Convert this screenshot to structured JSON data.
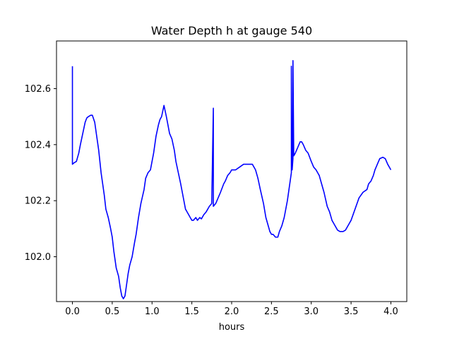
{
  "chart_data": {
    "type": "line",
    "title": "Water Depth h at gauge 540",
    "xlabel": "hours",
    "ylabel": "",
    "xlim": [
      -0.2,
      4.2
    ],
    "ylim": [
      101.84,
      102.77
    ],
    "x_ticks": [
      {
        "value": 0.0,
        "label": "0.0"
      },
      {
        "value": 0.5,
        "label": "0.5"
      },
      {
        "value": 1.0,
        "label": "1.0"
      },
      {
        "value": 1.5,
        "label": "1.5"
      },
      {
        "value": 2.0,
        "label": "2.0"
      },
      {
        "value": 2.5,
        "label": "2.5"
      },
      {
        "value": 3.0,
        "label": "3.0"
      },
      {
        "value": 3.5,
        "label": "3.5"
      },
      {
        "value": 4.0,
        "label": "4.0"
      }
    ],
    "y_ticks": [
      {
        "value": 102.0,
        "label": "102.0"
      },
      {
        "value": 102.2,
        "label": "102.2"
      },
      {
        "value": 102.4,
        "label": "102.4"
      },
      {
        "value": 102.6,
        "label": "102.6"
      }
    ],
    "grid": false,
    "series": [
      {
        "name": "",
        "color": "#0000ff",
        "x": [
          0.0,
          0.0,
          0.0,
          0.02,
          0.05,
          0.08,
          0.1,
          0.13,
          0.16,
          0.18,
          0.2,
          0.23,
          0.25,
          0.28,
          0.3,
          0.33,
          0.36,
          0.4,
          0.42,
          0.45,
          0.48,
          0.5,
          0.52,
          0.55,
          0.58,
          0.6,
          0.62,
          0.64,
          0.66,
          0.68,
          0.7,
          0.72,
          0.75,
          0.78,
          0.8,
          0.83,
          0.86,
          0.9,
          0.92,
          0.95,
          0.98,
          1.02,
          1.05,
          1.08,
          1.1,
          1.12,
          1.15,
          1.18,
          1.2,
          1.22,
          1.25,
          1.28,
          1.3,
          1.33,
          1.36,
          1.4,
          1.42,
          1.45,
          1.48,
          1.5,
          1.52,
          1.55,
          1.57,
          1.6,
          1.62,
          1.65,
          1.68,
          1.7,
          1.72,
          1.75,
          1.77,
          1.77,
          1.77,
          1.8,
          1.83,
          1.86,
          1.9,
          1.92,
          1.95,
          1.98,
          2.0,
          2.05,
          2.1,
          2.15,
          2.2,
          2.23,
          2.26,
          2.3,
          2.33,
          2.36,
          2.4,
          2.43,
          2.46,
          2.48,
          2.5,
          2.52,
          2.55,
          2.58,
          2.6,
          2.63,
          2.66,
          2.7,
          2.73,
          2.75,
          2.75,
          2.76,
          2.77,
          2.77,
          2.78,
          2.8,
          2.83,
          2.86,
          2.88,
          2.9,
          2.93,
          2.96,
          3.0,
          3.03,
          3.06,
          3.1,
          3.13,
          3.16,
          3.2,
          3.23,
          3.26,
          3.3,
          3.33,
          3.36,
          3.4,
          3.43,
          3.46,
          3.5,
          3.55,
          3.6,
          3.65,
          3.7,
          3.72,
          3.75,
          3.78,
          3.8,
          3.83,
          3.86,
          3.9,
          3.93,
          3.96,
          4.0
        ],
        "y": [
          102.68,
          102.33,
          102.33,
          102.335,
          102.34,
          102.37,
          102.4,
          102.44,
          102.48,
          102.495,
          102.5,
          102.505,
          102.505,
          102.48,
          102.44,
          102.38,
          102.3,
          102.22,
          102.17,
          102.14,
          102.1,
          102.07,
          102.02,
          101.96,
          101.93,
          101.89,
          101.86,
          101.85,
          101.86,
          101.9,
          101.94,
          101.97,
          102.0,
          102.05,
          102.08,
          102.14,
          102.19,
          102.24,
          102.28,
          102.3,
          102.31,
          102.37,
          102.43,
          102.47,
          102.49,
          102.5,
          102.54,
          102.5,
          102.47,
          102.44,
          102.42,
          102.38,
          102.34,
          102.3,
          102.26,
          102.2,
          102.17,
          102.155,
          102.14,
          102.13,
          102.13,
          102.14,
          102.13,
          102.14,
          102.135,
          102.15,
          102.16,
          102.17,
          102.18,
          102.19,
          102.53,
          102.19,
          102.18,
          102.19,
          102.21,
          102.23,
          102.26,
          102.27,
          102.29,
          102.3,
          102.31,
          102.31,
          102.32,
          102.33,
          102.33,
          102.33,
          102.33,
          102.31,
          102.28,
          102.24,
          102.19,
          102.14,
          102.11,
          102.09,
          102.08,
          102.08,
          102.07,
          102.07,
          102.09,
          102.11,
          102.14,
          102.2,
          102.26,
          102.3,
          102.68,
          102.31,
          102.35,
          102.7,
          102.36,
          102.37,
          102.39,
          102.41,
          102.41,
          102.4,
          102.38,
          102.37,
          102.34,
          102.32,
          102.31,
          102.29,
          102.26,
          102.23,
          102.18,
          102.16,
          102.13,
          102.11,
          102.095,
          102.09,
          102.09,
          102.095,
          102.11,
          102.13,
          102.17,
          102.21,
          102.23,
          102.24,
          102.26,
          102.27,
          102.29,
          102.31,
          102.33,
          102.35,
          102.355,
          102.35,
          102.33,
          102.31
        ]
      }
    ]
  }
}
